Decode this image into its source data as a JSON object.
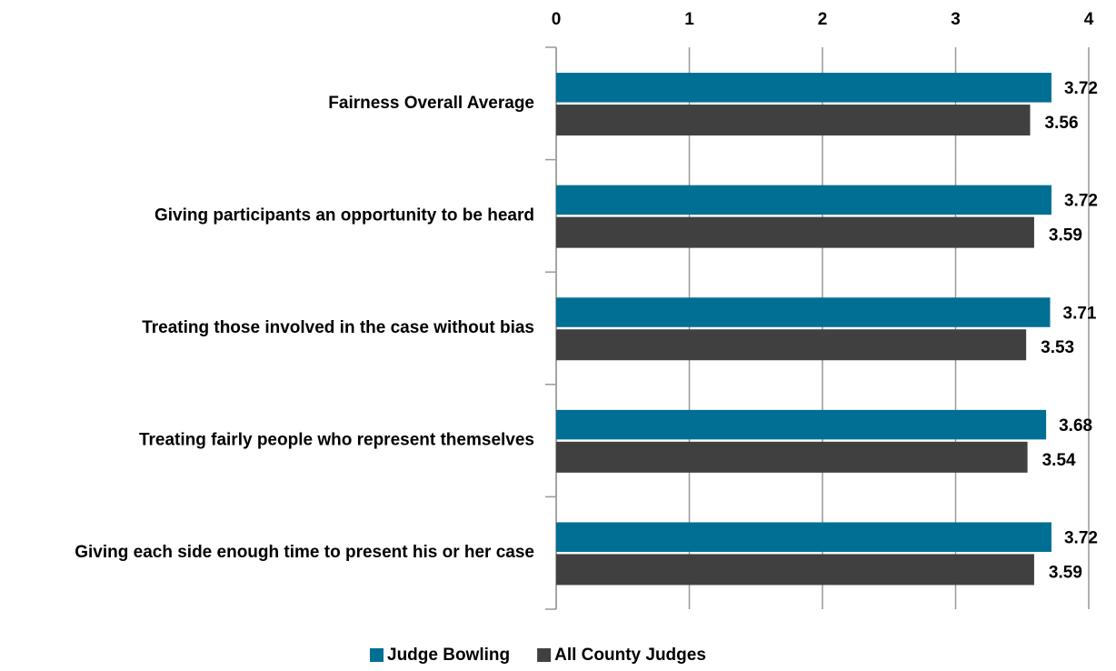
{
  "chart_data": {
    "type": "barh",
    "categories": [
      "Fairness Overall Average",
      "Giving participants an opportunity to be heard",
      "Treating those involved in the case without bias",
      "Treating fairly people who represent themselves",
      "Giving each side enough time to present his or her case"
    ],
    "series": [
      {
        "name": "Judge Bowling",
        "color": "#006f94",
        "values": [
          3.72,
          3.72,
          3.71,
          3.68,
          3.72
        ]
      },
      {
        "name": "All County Judges",
        "color": "#404040",
        "values": [
          3.56,
          3.59,
          3.53,
          3.54,
          3.59
        ]
      }
    ],
    "xlim": [
      0,
      4
    ],
    "xticks": [
      0,
      1,
      2,
      3,
      4
    ],
    "grid": true,
    "legend": "bottom"
  }
}
